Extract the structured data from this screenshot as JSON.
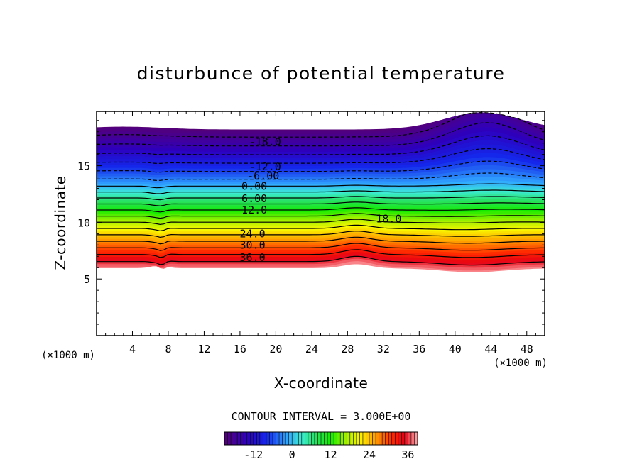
{
  "chart_data": {
    "type": "contour",
    "title": "disturbunce of potential temperature",
    "xlabel": "X-coordinate",
    "ylabel": "Z-coordinate",
    "x_unit": "(×1000 m)",
    "y_unit": "(×1000 m)",
    "xlim": [
      0,
      50
    ],
    "ylim": [
      0,
      19.8
    ],
    "x_ticks": [
      4,
      8,
      12,
      16,
      20,
      24,
      28,
      32,
      36,
      40,
      44,
      48
    ],
    "y_ticks": [
      5,
      10,
      15
    ],
    "contour_interval_text": "CONTOUR INTERVAL = 3.000E+00",
    "contour_interval": 3.0,
    "value_range": [
      -21,
      39
    ],
    "contour_labels": [
      {
        "text": "-18.0",
        "x": 18.8,
        "z": 17.1
      },
      {
        "text": "-12.0",
        "x": 18.8,
        "z": 14.9
      },
      {
        "text": "-6.00",
        "x": 18.6,
        "z": 14.1
      },
      {
        "text": "0.00",
        "x": 17.6,
        "z": 13.2
      },
      {
        "text": "6.00",
        "x": 17.6,
        "z": 12.1
      },
      {
        "text": "12.0",
        "x": 17.6,
        "z": 11.1
      },
      {
        "text": "18.0",
        "x": 32.6,
        "z": 10.3
      },
      {
        "text": "24.0",
        "x": 17.4,
        "z": 9.0
      },
      {
        "text": "30.0",
        "x": 17.4,
        "z": 8.0
      },
      {
        "text": "36.0",
        "x": 17.4,
        "z": 6.9
      }
    ],
    "colorbar": {
      "ticks": [
        -12,
        0,
        12,
        24,
        36
      ],
      "range": [
        -21,
        39
      ]
    }
  }
}
